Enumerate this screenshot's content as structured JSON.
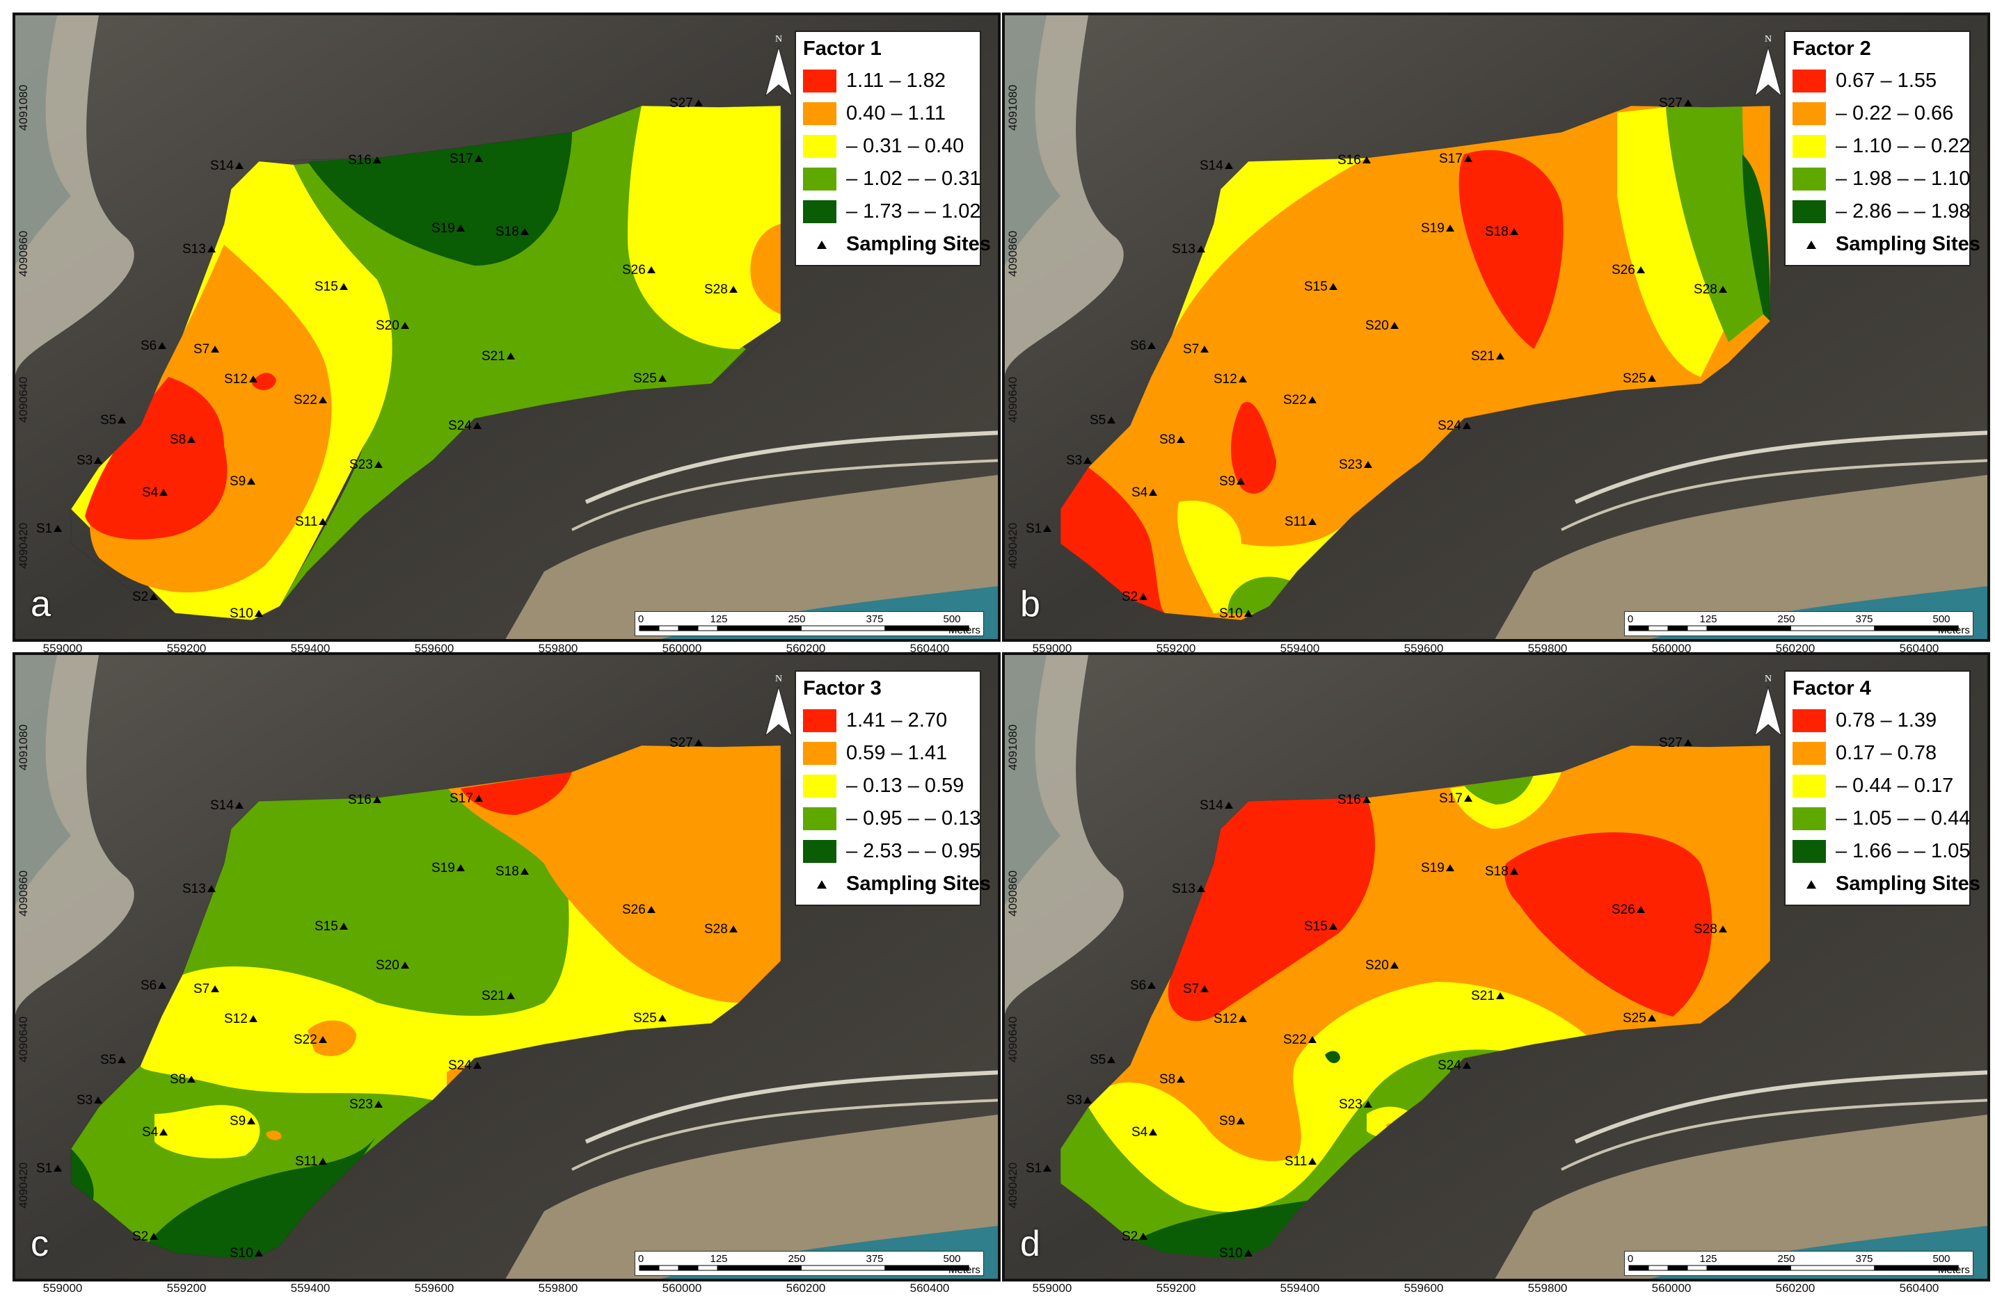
{
  "figure": {
    "panels": [
      {
        "letter": "a",
        "legend": {
          "title": "Factor 1",
          "classes": [
            {
              "label": "1.11 – 1.82",
              "color": "#ff2200"
            },
            {
              "label": "0.40 – 1.11",
              "color": "#ff9900"
            },
            {
              "label": "– 0.31 – 0.40",
              "color": "#ffff00"
            },
            {
              "label": "– 1.02 – – 0.31",
              "color": "#5fa800"
            },
            {
              "label": "– 1.73 – – 1.02",
              "color": "#0a5c05"
            }
          ],
          "sites_label": "Sampling Sites"
        }
      },
      {
        "letter": "b",
        "legend": {
          "title": "Factor 2",
          "classes": [
            {
              "label": "0.67 – 1.55",
              "color": "#ff2200"
            },
            {
              "label": "– 0.22 – 0.66",
              "color": "#ff9900"
            },
            {
              "label": "– 1.10 – – 0.22",
              "color": "#ffff00"
            },
            {
              "label": "– 1.98 – – 1.10",
              "color": "#5fa800"
            },
            {
              "label": "– 2.86 – – 1.98",
              "color": "#0a5c05"
            }
          ],
          "sites_label": "Sampling Sites"
        }
      },
      {
        "letter": "c",
        "legend": {
          "title": "Factor 3",
          "classes": [
            {
              "label": "1.41 – 2.70",
              "color": "#ff2200"
            },
            {
              "label": "0.59 – 1.41",
              "color": "#ff9900"
            },
            {
              "label": "– 0.13 – 0.59",
              "color": "#ffff00"
            },
            {
              "label": "– 0.95 – – 0.13",
              "color": "#5fa800"
            },
            {
              "label": "– 2.53 – – 0.95",
              "color": "#0a5c05"
            }
          ],
          "sites_label": "Sampling Sites"
        }
      },
      {
        "letter": "d",
        "legend": {
          "title": "Factor 4",
          "classes": [
            {
              "label": "0.78 – 1.39",
              "color": "#ff2200"
            },
            {
              "label": "0.17 – 0.78",
              "color": "#ff9900"
            },
            {
              "label": "– 0.44 – 0.17",
              "color": "#ffff00"
            },
            {
              "label": "– 1.05 – – 0.44",
              "color": "#5fa800"
            },
            {
              "label": "– 1.66 – – 1.05",
              "color": "#0a5c05"
            }
          ],
          "sites_label": "Sampling Sites"
        }
      }
    ],
    "x_ticks": [
      "559000",
      "559200",
      "559400",
      "559600",
      "559800",
      "560000",
      "560200",
      "560400"
    ],
    "y_ticks": [
      "4090420",
      "4090640",
      "4090860",
      "4091080"
    ],
    "scale": {
      "ticks": [
        "0",
        "125",
        "250",
        "375",
        "500"
      ],
      "unit": "Meters"
    },
    "north_label": "N",
    "sites": [
      "S1",
      "S2",
      "S3",
      "S4",
      "S5",
      "S6",
      "S7",
      "S8",
      "S9",
      "S10",
      "S11",
      "S12",
      "S13",
      "S14",
      "S15",
      "S16",
      "S17",
      "S18",
      "S19",
      "S20",
      "S21",
      "S22",
      "S23",
      "S24",
      "S25",
      "S26",
      "S27",
      "S28"
    ]
  }
}
